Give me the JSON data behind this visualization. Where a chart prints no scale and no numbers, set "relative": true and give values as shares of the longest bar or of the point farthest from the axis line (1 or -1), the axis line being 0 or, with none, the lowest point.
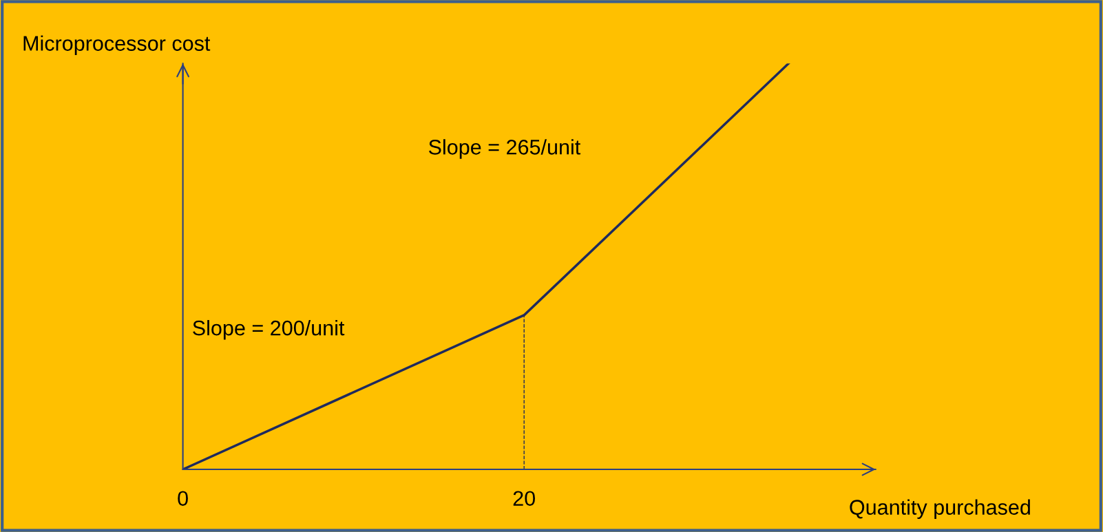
{
  "chart_data": {
    "type": "line",
    "xlabel": "Quantity purchased",
    "ylabel": "Microprocessor cost",
    "relative": true,
    "x": [
      0,
      20,
      35.5
    ],
    "series": [
      {
        "color": "#1f2a5e",
        "values": [
          0,
          0.38,
          1
        ]
      }
    ],
    "xlim": [
      0,
      40.6
    ],
    "xticks": [
      0,
      20
    ],
    "ref_lines": [
      {
        "axis": "x",
        "value": 20,
        "label": null,
        "line_style": "dashed",
        "color": "#1f2a5e"
      }
    ],
    "annotations": [
      "Slope = 265/unit",
      "Slope = 200/unit"
    ],
    "grid": false,
    "marker": "none",
    "line_style": "solid"
  }
}
